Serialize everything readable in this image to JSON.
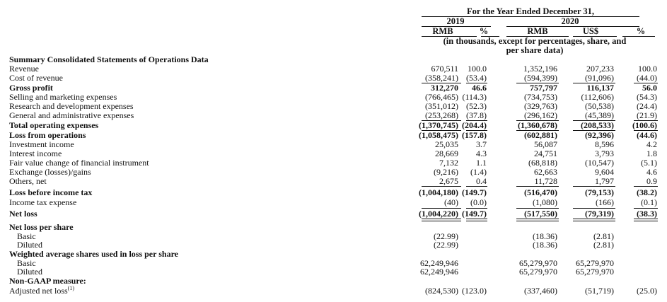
{
  "header": {
    "period": "For the Year Ended December 31,",
    "year_2019": "2019",
    "year_2020": "2020",
    "col_rmb_2019": "RMB",
    "col_pct_2019": "%",
    "col_rmb_2020": "RMB",
    "col_usd_2020": "US$",
    "col_pct_2020": "%",
    "units_line1": "(in thousands, except for percentages, share, and",
    "units_line2": "per share data)"
  },
  "rows": [
    {
      "label": "Summary Consolidated Statements of Operations Data",
      "bold": true,
      "cells": [
        "",
        "",
        "",
        "",
        ""
      ]
    },
    {
      "label": "Revenue",
      "cells": [
        "670,511",
        "100.0",
        "1,352,196",
        "207,233",
        "100.0"
      ]
    },
    {
      "label": "Cost of revenue",
      "cells": [
        "(358,241)",
        "(53.4)",
        "(594,399)",
        "(91,096)",
        "(44.0)"
      ]
    },
    {
      "label": "Gross profit",
      "bold": true,
      "cells": [
        "312,270",
        "46.6",
        "757,797",
        "116,137",
        "56.0"
      ]
    },
    {
      "label": "Selling and marketing expenses",
      "cells": [
        "(766,465)",
        "(114.3)",
        "(734,753)",
        "(112,606)",
        "(54.3)"
      ]
    },
    {
      "label": "Research and development expenses",
      "cells": [
        "(351,012)",
        "(52.3)",
        "(329,763)",
        "(50,538)",
        "(24.4)"
      ]
    },
    {
      "label": "General and administrative expenses",
      "cells": [
        "(253,268)",
        "(37.8)",
        "(296,162)",
        "(45,389)",
        "(21.9)"
      ]
    },
    {
      "label": "Total operating expenses",
      "bold": true,
      "cells": [
        "(1,370,745)",
        "(204.4)",
        "(1,360,678)",
        "(208,533)",
        "(100.6)"
      ]
    },
    {
      "label": "Loss from operations",
      "bold": true,
      "cells": [
        "(1,058,475)",
        "(157.8)",
        "(602,881)",
        "(92,396)",
        "(44.6)"
      ]
    },
    {
      "label": "Investment income",
      "cells": [
        "25,035",
        "3.7",
        "56,087",
        "8,596",
        "4.2"
      ]
    },
    {
      "label": "Interest income",
      "cells": [
        "28,669",
        "4.3",
        "24,751",
        "3,793",
        "1.8"
      ]
    },
    {
      "label": "Fair value change of financial instrument",
      "cells": [
        "7,132",
        "1.1",
        "(68,818)",
        "(10,547)",
        "(5.1)"
      ]
    },
    {
      "label": "Exchange (losses)/gains",
      "cells": [
        "(9,216)",
        "(1.4)",
        "62,663",
        "9,604",
        "4.6"
      ]
    },
    {
      "label": "Others, net",
      "cells": [
        "2,675",
        "0.4",
        "11,728",
        "1,797",
        "0.9"
      ]
    },
    {
      "label": "Loss before income tax",
      "bold": true,
      "cells": [
        "(1,004,180)",
        "(149.7)",
        "(516,470)",
        "(79,153)",
        "(38.2)"
      ]
    },
    {
      "label": "Income tax expense",
      "cells": [
        "(40)",
        "(0.0)",
        "(1,080)",
        "(166)",
        "(0.1)"
      ]
    },
    {
      "label": "Net loss",
      "bold": true,
      "cells": [
        "(1,004,220)",
        "(149.7)",
        "(517,550)",
        "(79,319)",
        "(38.3)"
      ]
    },
    {
      "label": "Net loss per share",
      "bold": true,
      "cells": [
        "",
        "",
        "",
        "",
        ""
      ]
    },
    {
      "label": "Basic",
      "indent": true,
      "cells": [
        "(22.99)",
        "",
        "(18.36)",
        "(2.81)",
        ""
      ]
    },
    {
      "label": "Diluted",
      "indent": true,
      "cells": [
        "(22.99)",
        "",
        "(18.36)",
        "(2.81)",
        ""
      ]
    },
    {
      "label": "Weighted average shares used in loss per share",
      "bold": true,
      "cells": [
        "",
        "",
        "",
        "",
        ""
      ]
    },
    {
      "label": "Basic",
      "indent": true,
      "cells": [
        "62,249,946",
        "",
        "65,279,970",
        "65,279,970",
        ""
      ]
    },
    {
      "label": "Diluted",
      "indent": true,
      "cells": [
        "62,249,946",
        "",
        "65,279,970",
        "65,279,970",
        ""
      ]
    },
    {
      "label": "Non-GAAP measure:",
      "bold": true,
      "cells": [
        "",
        "",
        "",
        "",
        ""
      ]
    },
    {
      "label": "Adjusted net loss",
      "footnote": "(1)",
      "cells": [
        "(824,530)",
        "(123.0)",
        "(337,460)",
        "(51,719)",
        "(25.0)"
      ]
    }
  ]
}
